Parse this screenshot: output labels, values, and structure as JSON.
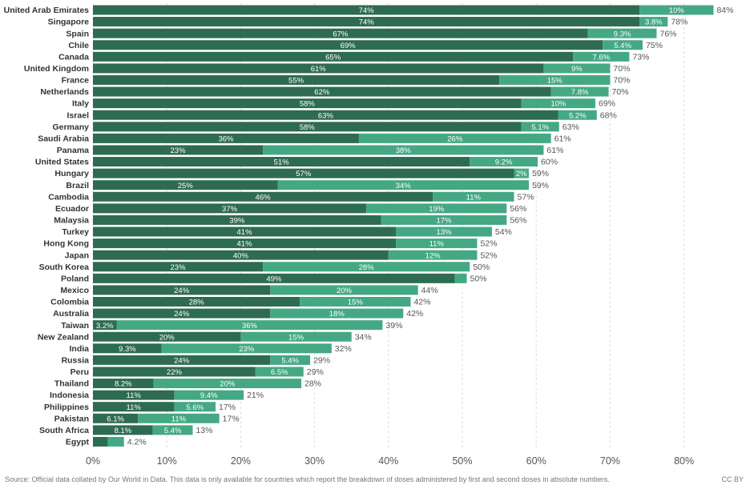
{
  "chart_data": {
    "type": "bar",
    "orientation": "horizontal",
    "stacked": true,
    "categories": [
      "United Arab Emirates",
      "Singapore",
      "Spain",
      "Chile",
      "Canada",
      "United Kingdom",
      "France",
      "Netherlands",
      "Italy",
      "Israel",
      "Germany",
      "Saudi Arabia",
      "Panama",
      "United States",
      "Hungary",
      "Brazil",
      "Cambodia",
      "Ecuador",
      "Malaysia",
      "Turkey",
      "Hong Kong",
      "Japan",
      "South Korea",
      "Poland",
      "Mexico",
      "Colombia",
      "Australia",
      "Taiwan",
      "New Zealand",
      "India",
      "Russia",
      "Peru",
      "Thailand",
      "Indonesia",
      "Philippines",
      "Pakistan",
      "South Africa",
      "Egypt"
    ],
    "series": [
      {
        "color": "#2e6b53",
        "values": [
          74,
          74,
          67,
          69,
          65,
          61,
          55,
          62,
          58,
          63,
          58,
          36,
          23,
          51,
          57,
          25,
          46,
          37,
          39,
          41,
          41,
          40,
          23,
          49,
          24,
          28,
          24,
          3.2,
          20,
          9.3,
          24,
          22,
          8.2,
          11,
          11,
          6.1,
          8.1,
          2
        ],
        "labels": [
          "74%",
          "74%",
          "67%",
          "69%",
          "65%",
          "61%",
          "55%",
          "62%",
          "58%",
          "63%",
          "58%",
          "36%",
          "23%",
          "51%",
          "57%",
          "25%",
          "46%",
          "37%",
          "39%",
          "41%",
          "41%",
          "40%",
          "23%",
          "49%",
          "24%",
          "28%",
          "24%",
          "3.2%",
          "20%",
          "9.3%",
          "24%",
          "22%",
          "8.2%",
          "11%",
          "11%",
          "6.1%",
          "8.1%",
          ""
        ]
      },
      {
        "color": "#45a884",
        "values": [
          10,
          3.8,
          9.3,
          5.4,
          7.6,
          9,
          15,
          7.8,
          10,
          5.2,
          5.1,
          26,
          38,
          9.2,
          2,
          34,
          11,
          19,
          17,
          13,
          11,
          12,
          28,
          1.6,
          20,
          15,
          18,
          36,
          15,
          23,
          5.4,
          6.5,
          20,
          9.4,
          5.6,
          11,
          5.4,
          2.2
        ],
        "labels": [
          "10%",
          "3.8%",
          "9.3%",
          "5.4%",
          "7.6%",
          "9%",
          "15%",
          "7.8%",
          "10%",
          "5.2%",
          "5.1%",
          "26%",
          "38%",
          "9.2%",
          "2%",
          "34%",
          "11%",
          "19%",
          "17%",
          "13%",
          "11%",
          "12%",
          "28%",
          "",
          "20%",
          "15%",
          "18%",
          "36%",
          "15%",
          "23%",
          "5.4%",
          "6.5%",
          "20%",
          "9.4%",
          "5.6%",
          "11%",
          "5.4%",
          ""
        ]
      }
    ],
    "totals": [
      "84%",
      "78%",
      "76%",
      "75%",
      "73%",
      "70%",
      "70%",
      "70%",
      "69%",
      "68%",
      "63%",
      "61%",
      "61%",
      "60%",
      "59%",
      "59%",
      "57%",
      "56%",
      "56%",
      "54%",
      "52%",
      "52%",
      "50%",
      "50%",
      "44%",
      "42%",
      "42%",
      "39%",
      "34%",
      "32%",
      "29%",
      "29%",
      "28%",
      "21%",
      "17%",
      "17%",
      "13%",
      "4.2%"
    ],
    "xlim": [
      0,
      84
    ],
    "xticks": [
      0,
      10,
      20,
      30,
      40,
      50,
      60,
      70,
      80
    ],
    "xtick_labels": [
      "0%",
      "10%",
      "20%",
      "30%",
      "40%",
      "50%",
      "60%",
      "70%",
      "80%"
    ],
    "grid": true,
    "legend": "none"
  },
  "footer": {
    "source": "Source: Official data collated by Our World in Data. This data is only available for countries which report the breakdown of doses administered by first and second doses in absolute numbers.",
    "license": "CC BY"
  }
}
